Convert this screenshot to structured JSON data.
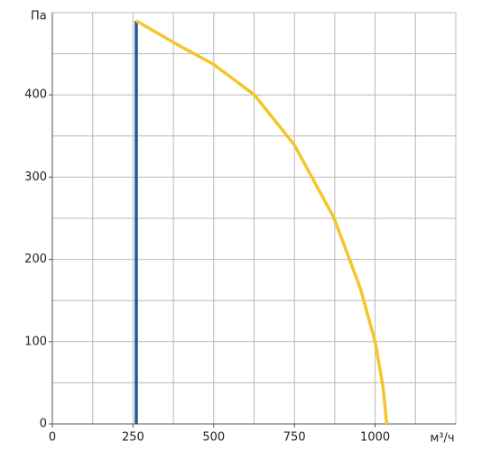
{
  "chart_data": {
    "type": "line",
    "x_label": "м³/ч",
    "y_label": "Па",
    "xlim": [
      0,
      1250
    ],
    "ylim": [
      0,
      500
    ],
    "xticks": [
      0,
      250,
      500,
      750,
      1000
    ],
    "yticks": [
      0,
      100,
      200,
      300,
      400
    ],
    "xgrid": [
      0,
      125,
      250,
      375,
      500,
      625,
      750,
      875,
      1000,
      1125,
      1250
    ],
    "ygrid": [
      0,
      50,
      100,
      150,
      200,
      250,
      300,
      350,
      400,
      450,
      500
    ],
    "series": [
      {
        "color": "#1f5a96",
        "x": [
          260,
          260
        ],
        "values": [
          0,
          490
        ]
      },
      {
        "color": "#f5c52a",
        "x": [
          260,
          397,
          500,
          626,
          750,
          872,
          955,
          1000,
          1025,
          1036
        ],
        "values": [
          490,
          459,
          437,
          400,
          339,
          251,
          164,
          100,
          44,
          0
        ]
      }
    ]
  }
}
